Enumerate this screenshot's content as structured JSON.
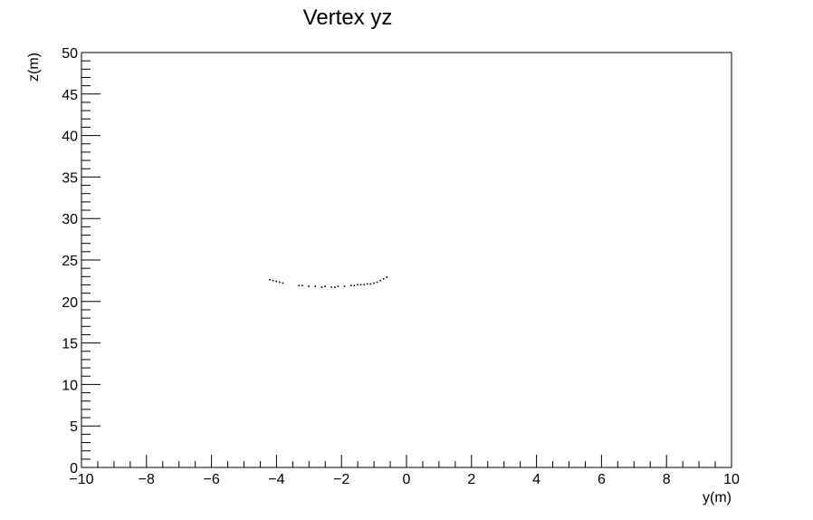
{
  "chart_data": {
    "type": "scatter",
    "title": "Vertex yz",
    "xlabel": "y(m)",
    "ylabel": "z(m)",
    "xlim": [
      -10,
      10
    ],
    "ylim": [
      0,
      50
    ],
    "x_ticks": [
      -10,
      -8,
      -6,
      -4,
      -2,
      0,
      2,
      4,
      6,
      8,
      10
    ],
    "x_tick_labels": [
      "−10",
      "−8",
      "−6",
      "−4",
      "−2",
      "0",
      "2",
      "4",
      "6",
      "8",
      "10"
    ],
    "y_ticks": [
      0,
      5,
      10,
      15,
      20,
      25,
      30,
      35,
      40,
      45,
      50
    ],
    "y_tick_labels": [
      "0",
      "5",
      "10",
      "15",
      "20",
      "25",
      "30",
      "35",
      "40",
      "45",
      "50"
    ],
    "grid": false,
    "legend": "none",
    "marker_color": "#000000",
    "series": [
      {
        "x": [
          -4.2,
          -4.1,
          -4.0,
          -3.9,
          -3.8,
          -3.3,
          -3.2,
          -3.0,
          -2.8,
          -2.6,
          -2.5,
          -2.3,
          -2.2,
          -2.1,
          -1.9,
          -1.7,
          -1.6,
          -1.5,
          -1.4,
          -1.3,
          -1.2,
          -1.1,
          -1.0,
          -0.9,
          -0.8,
          -0.7,
          -0.6
        ],
        "y": [
          22.6,
          22.5,
          22.4,
          22.3,
          22.2,
          21.9,
          21.9,
          21.8,
          21.8,
          21.7,
          21.8,
          21.7,
          21.7,
          21.8,
          21.8,
          21.9,
          21.9,
          22.0,
          22.0,
          22.0,
          22.1,
          22.1,
          22.2,
          22.3,
          22.5,
          22.7,
          22.9
        ]
      }
    ]
  }
}
